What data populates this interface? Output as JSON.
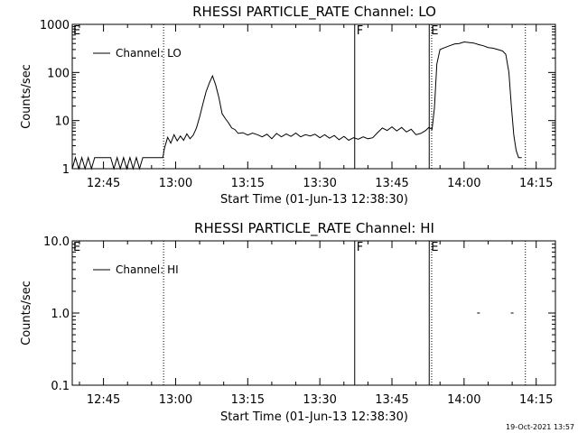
{
  "chart_data": [
    {
      "type": "line",
      "title": "RHESSI PARTICLE_RATE Channel: LO",
      "xlabel": "Start Time (01-Jun-13 12:38:30)",
      "ylabel": "Counts/sec",
      "yscale": "log",
      "ylim": [
        1,
        1000
      ],
      "xlim": [
        "12:38:30",
        "14:19:00"
      ],
      "y_tick_labels": [
        "1",
        "10",
        "100",
        "1000"
      ],
      "x_tick_labels": [
        "12:45",
        "13:00",
        "13:15",
        "13:30",
        "13:45",
        "14:00",
        "14:15"
      ],
      "legend": {
        "position": "top-left",
        "entries": [
          "Channel: LO"
        ]
      },
      "markers": [
        {
          "time": "12:57:30",
          "style": "dotted",
          "label": ""
        },
        {
          "time": "13:37:15",
          "style": "solid",
          "label": "F"
        },
        {
          "time": "13:52:45",
          "style": "solid",
          "label": "E"
        },
        {
          "time": "13:53:15",
          "style": "dotted",
          "label": ""
        },
        {
          "time": "14:12:45",
          "style": "dotted",
          "label": ""
        }
      ],
      "corner_label": "E",
      "series": [
        {
          "name": "Channel: LO",
          "points": [
            [
              "12:38:30",
              1
            ],
            [
              "12:39:10",
              1.7
            ],
            [
              "12:39:50",
              1
            ],
            [
              "12:40:30",
              1.7
            ],
            [
              "12:41:10",
              1
            ],
            [
              "12:41:50",
              1.7
            ],
            [
              "12:42:30",
              1
            ],
            [
              "12:43:10",
              1.7
            ],
            [
              "12:43:50",
              1.7
            ],
            [
              "12:44:30",
              1.7
            ],
            [
              "12:45:10",
              1.7
            ],
            [
              "12:45:50",
              1.7
            ],
            [
              "12:46:30",
              1.7
            ],
            [
              "12:47:10",
              1
            ],
            [
              "12:47:50",
              1.7
            ],
            [
              "12:48:30",
              1
            ],
            [
              "12:49:10",
              1.7
            ],
            [
              "12:49:50",
              1
            ],
            [
              "12:50:30",
              1.7
            ],
            [
              "12:51:10",
              1
            ],
            [
              "12:51:50",
              1.7
            ],
            [
              "12:52:30",
              1
            ],
            [
              "12:53:10",
              1.7
            ],
            [
              "12:54:00",
              1.7
            ],
            [
              "12:55:00",
              1.7
            ],
            [
              "12:56:00",
              1.7
            ],
            [
              "12:57:20",
              1.7
            ],
            [
              "12:57:40",
              2.6
            ],
            [
              "12:58:20",
              4.5
            ],
            [
              "12:59:00",
              3.4
            ],
            [
              "12:59:40",
              5.1
            ],
            [
              "13:00:20",
              3.8
            ],
            [
              "13:01:00",
              4.8
            ],
            [
              "13:01:40",
              3.9
            ],
            [
              "13:02:20",
              5.3
            ],
            [
              "13:03:00",
              4.2
            ],
            [
              "13:03:40",
              5
            ],
            [
              "13:04:20",
              7
            ],
            [
              "13:05:00",
              12
            ],
            [
              "13:05:40",
              22
            ],
            [
              "13:06:20",
              40
            ],
            [
              "13:07:00",
              60
            ],
            [
              "13:07:40",
              85
            ],
            [
              "13:08:20",
              55
            ],
            [
              "13:09:00",
              30
            ],
            [
              "13:09:40",
              14
            ],
            [
              "13:10:20",
              11
            ],
            [
              "13:11:00",
              9
            ],
            [
              "13:11:40",
              7
            ],
            [
              "13:12:20",
              6.5
            ],
            [
              "13:13:00",
              5.4
            ],
            [
              "13:14:00",
              5.6
            ],
            [
              "13:15:00",
              5
            ],
            [
              "13:16:00",
              5.5
            ],
            [
              "13:17:00",
              5.1
            ],
            [
              "13:18:00",
              4.6
            ],
            [
              "13:19:00",
              5.2
            ],
            [
              "13:20:00",
              4.2
            ],
            [
              "13:21:00",
              5.4
            ],
            [
              "13:22:00",
              4.6
            ],
            [
              "13:23:00",
              5.3
            ],
            [
              "13:24:00",
              4.7
            ],
            [
              "13:25:00",
              5.5
            ],
            [
              "13:26:00",
              4.6
            ],
            [
              "13:27:00",
              5.1
            ],
            [
              "13:28:00",
              4.8
            ],
            [
              "13:29:00",
              5.2
            ],
            [
              "13:30:00",
              4.4
            ],
            [
              "13:31:00",
              5.1
            ],
            [
              "13:32:00",
              4.3
            ],
            [
              "13:33:00",
              4.9
            ],
            [
              "13:34:00",
              4
            ],
            [
              "13:35:00",
              4.7
            ],
            [
              "13:36:00",
              3.9
            ],
            [
              "13:37:00",
              4.4
            ],
            [
              "13:38:00",
              4.1
            ],
            [
              "13:39:00",
              4.6
            ],
            [
              "13:40:00",
              4.2
            ],
            [
              "13:41:00",
              4.4
            ],
            [
              "13:42:00",
              5.6
            ],
            [
              "13:43:00",
              7
            ],
            [
              "13:44:00",
              6.2
            ],
            [
              "13:45:00",
              7.4
            ],
            [
              "13:46:00",
              6.1
            ],
            [
              "13:47:00",
              7.2
            ],
            [
              "13:48:00",
              5.8
            ],
            [
              "13:49:00",
              6.6
            ],
            [
              "13:50:00",
              5.1
            ],
            [
              "13:51:00",
              5.4
            ],
            [
              "13:52:00",
              6.2
            ],
            [
              "13:52:40",
              7.2
            ],
            [
              "13:53:20",
              6.6
            ],
            [
              "13:53:50",
              18
            ],
            [
              "13:54:20",
              150
            ],
            [
              "13:55:00",
              300
            ],
            [
              "13:56:00",
              330
            ],
            [
              "13:57:00",
              360
            ],
            [
              "13:58:00",
              390
            ],
            [
              "13:59:00",
              400
            ],
            [
              "14:00:00",
              430
            ],
            [
              "14:01:00",
              420
            ],
            [
              "14:02:00",
              410
            ],
            [
              "14:03:00",
              380
            ],
            [
              "14:04:00",
              360
            ],
            [
              "14:05:00",
              330
            ],
            [
              "14:06:00",
              320
            ],
            [
              "14:07:00",
              300
            ],
            [
              "14:08:00",
              280
            ],
            [
              "14:08:40",
              240
            ],
            [
              "14:09:20",
              100
            ],
            [
              "14:09:50",
              20
            ],
            [
              "14:10:20",
              5
            ],
            [
              "14:10:50",
              2.4
            ],
            [
              "14:11:20",
              1.7
            ],
            [
              "14:12:00",
              1.7
            ]
          ]
        }
      ]
    },
    {
      "type": "line",
      "title": "RHESSI PARTICLE_RATE Channel: HI",
      "xlabel": "Start Time (01-Jun-13 12:38:30)",
      "ylabel": "Counts/sec",
      "yscale": "log",
      "ylim": [
        0.1,
        10
      ],
      "xlim": [
        "12:38:30",
        "14:19:00"
      ],
      "y_tick_labels": [
        "0.1",
        "1.0",
        "10.0"
      ],
      "x_tick_labels": [
        "12:45",
        "13:00",
        "13:15",
        "13:30",
        "13:45",
        "14:00",
        "14:15"
      ],
      "legend": {
        "position": "top-left",
        "entries": [
          "Channel: HI"
        ]
      },
      "markers": [
        {
          "time": "12:57:30",
          "style": "dotted",
          "label": ""
        },
        {
          "time": "13:37:15",
          "style": "solid",
          "label": "F"
        },
        {
          "time": "13:52:45",
          "style": "solid",
          "label": "E"
        },
        {
          "time": "13:53:15",
          "style": "dotted",
          "label": ""
        },
        {
          "time": "14:12:45",
          "style": "dotted",
          "label": ""
        }
      ],
      "corner_label": "E",
      "series": [
        {
          "name": "Channel: HI",
          "points": [
            [
              "14:03:00",
              1
            ],
            [
              "14:10:00",
              1
            ]
          ]
        }
      ]
    }
  ],
  "footer_timestamp": "19-Oct-2021 13:57"
}
